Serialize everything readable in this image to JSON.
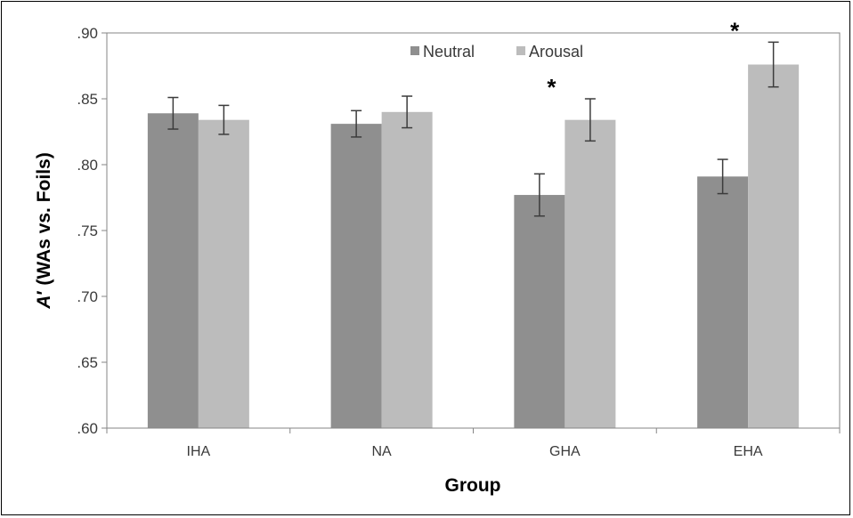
{
  "chart_data": {
    "type": "bar",
    "categories": [
      "IHA",
      "NA",
      "GHA",
      "EHA"
    ],
    "series": [
      {
        "name": "Neutral",
        "values": [
          0.839,
          0.831,
          0.777,
          0.791
        ],
        "errors": [
          0.012,
          0.01,
          0.016,
          0.013
        ],
        "color": "#8f8f8f"
      },
      {
        "name": "Arousal",
        "values": [
          0.834,
          0.84,
          0.834,
          0.876
        ],
        "errors": [
          0.011,
          0.012,
          0.016,
          0.017
        ],
        "color": "#bcbcbc"
      }
    ],
    "significance": [
      "",
      "",
      "*",
      "*"
    ],
    "xlabel": "Group",
    "ylabel_italic": "A",
    "ylabel_rest": "′ (WAs vs. Foils)",
    "ylim": [
      0.6,
      0.9
    ],
    "yticks": [
      ".60",
      ".65",
      ".70",
      ".75",
      ".80",
      ".85",
      ".90"
    ],
    "legend_position": "top-center",
    "grid": false
  }
}
